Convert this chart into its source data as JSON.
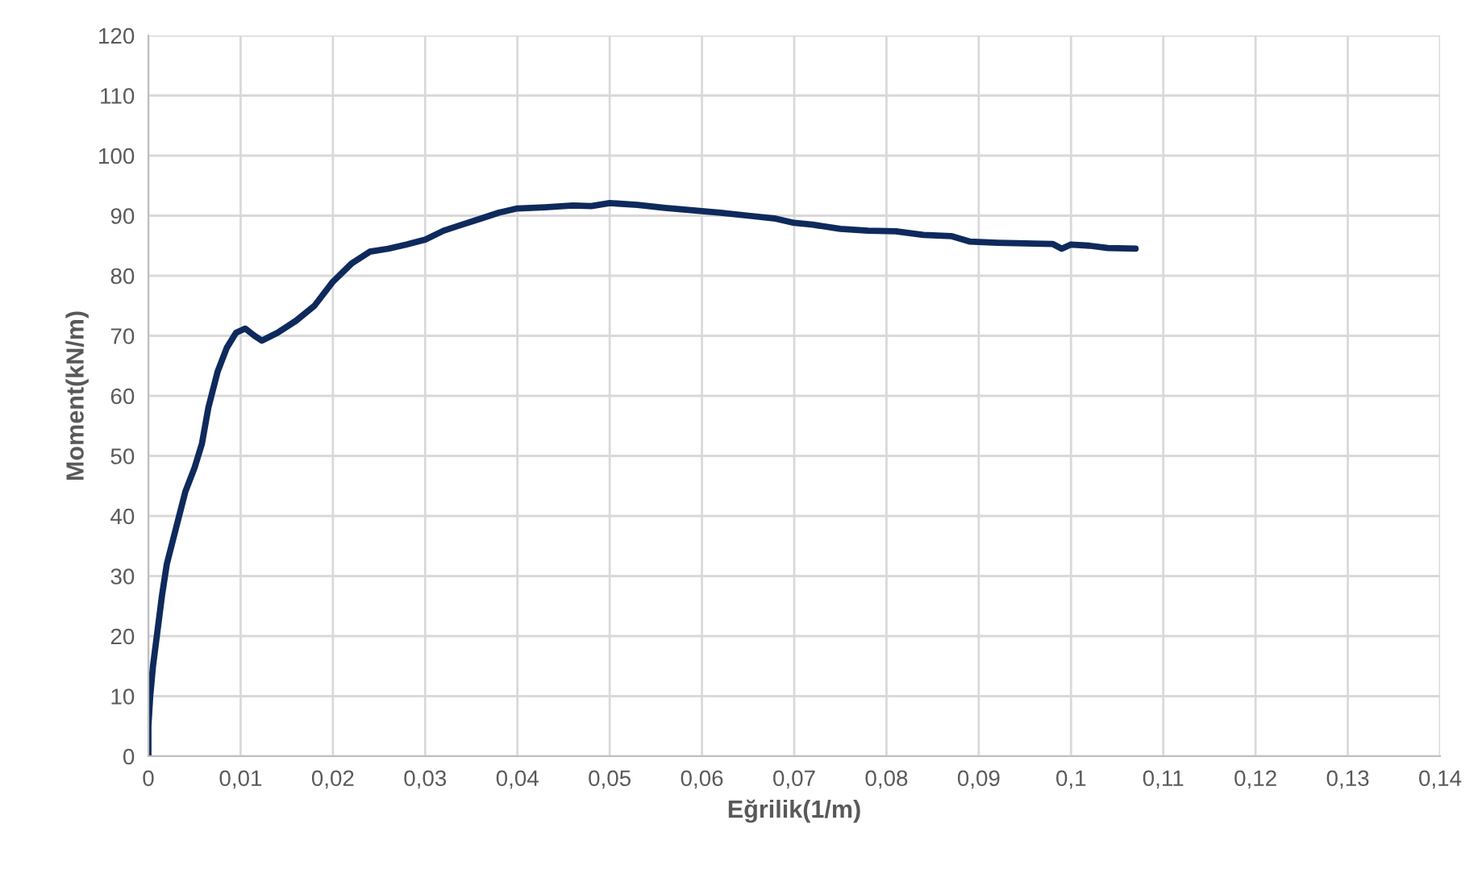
{
  "chart_data": {
    "type": "line",
    "xlabel": "Eğrilik(1/m)",
    "ylabel": "Moment(kN/m)",
    "xlim": [
      0,
      0.14
    ],
    "ylim": [
      0,
      120
    ],
    "xticks": [
      0,
      {
        "value": 0.01,
        "label": "0,01"
      },
      {
        "value": 0.02,
        "label": "0,02"
      },
      {
        "value": 0.03,
        "label": "0,03"
      },
      {
        "value": 0.04,
        "label": "0,04"
      },
      {
        "value": 0.05,
        "label": "0,05"
      },
      {
        "value": 0.06,
        "label": "0,06"
      },
      {
        "value": 0.07,
        "label": "0,07"
      },
      {
        "value": 0.08,
        "label": "0,08"
      },
      {
        "value": 0.09,
        "label": "0,09"
      },
      {
        "value": 0.1,
        "label": "0,1"
      },
      {
        "value": 0.11,
        "label": "0,11"
      },
      {
        "value": 0.12,
        "label": "0,12"
      },
      {
        "value": 0.13,
        "label": "0,13"
      },
      {
        "value": 0.14,
        "label": "0,14"
      }
    ],
    "yticks": [
      0,
      10,
      20,
      30,
      40,
      50,
      60,
      70,
      80,
      90,
      100,
      110,
      120
    ],
    "grid": true,
    "marker": "none",
    "line_style": "solid",
    "legend": false,
    "series": [
      {
        "color": "#0e2a5c",
        "x": [
          0,
          0,
          0.0002,
          0.0005,
          0.001,
          0.0015,
          0.002,
          0.003,
          0.004,
          0.005,
          0.0058,
          0.0065,
          0.0075,
          0.0085,
          0.0095,
          0.0105,
          0.0115,
          0.0123,
          0.014,
          0.016,
          0.018,
          0.02,
          0.022,
          0.024,
          0.026,
          0.028,
          0.03,
          0.032,
          0.034,
          0.036,
          0.038,
          0.04,
          0.043,
          0.046,
          0.048,
          0.05,
          0.053,
          0.056,
          0.059,
          0.062,
          0.065,
          0.068,
          0.07,
          0.072,
          0.075,
          0.078,
          0.081,
          0.084,
          0.087,
          0.089,
          0.092,
          0.095,
          0.098,
          0.099,
          0.1,
          0.102,
          0.104,
          0.107
        ],
        "values": [
          0,
          5,
          10,
          15,
          21,
          27,
          32,
          38,
          44,
          48,
          52,
          58,
          64,
          68,
          70.5,
          71.2,
          70,
          69.2,
          70.5,
          72.5,
          75,
          79,
          82,
          84,
          84.5,
          85.2,
          86,
          87.5,
          88.5,
          89.5,
          90.5,
          91.2,
          91.4,
          91.7,
          91.6,
          92.1,
          91.8,
          91.3,
          90.9,
          90.5,
          90,
          89.5,
          88.8,
          88.5,
          87.8,
          87.5,
          87.4,
          86.8,
          86.6,
          85.7,
          85.5,
          85.4,
          85.3,
          84.5,
          85.2,
          85,
          84.6,
          84.5
        ]
      }
    ]
  }
}
